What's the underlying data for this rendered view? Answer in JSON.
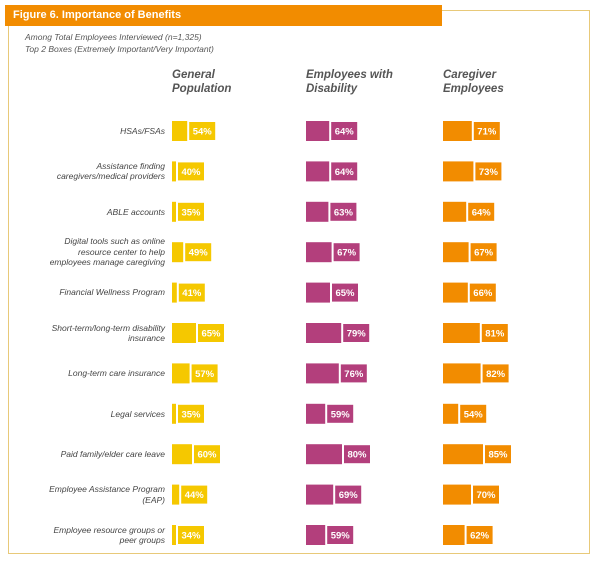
{
  "figure_title": "Figure 6. Importance of Benefits",
  "subtitle_line1": "Among Total Employees Interviewed (n=1,325)",
  "subtitle_line2": "Top 2 Boxes (Extremely Important/Very Important)",
  "colors": {
    "general": "#f5c800",
    "disability": "#b33f7c",
    "caregiver": "#f28c00",
    "title_bar": "#f28c00",
    "frame": "#e8c979"
  },
  "chart_data": {
    "type": "bar",
    "orientation": "horizontal",
    "title": "Figure 6. Importance of Benefits",
    "value_unit": "%",
    "categories": [
      "HSAs/FSAs",
      "Assistance finding caregivers/medical providers",
      "ABLE accounts",
      "Digital tools such as online resource center to help employees manage caregiving",
      "Financial Wellness Program",
      "Short-term/long-term disability insurance",
      "Long-term care insurance",
      "Legal services",
      "Paid family/elder care leave",
      "Employee Assistance Program (EAP)",
      "Employee resource groups or peer groups"
    ],
    "category_lines": [
      [
        "HSAs/FSAs"
      ],
      [
        "Assistance finding",
        "caregivers/medical providers"
      ],
      [
        "ABLE accounts"
      ],
      [
        "Digital tools such as online",
        "resource center to help",
        "employees manage caregiving"
      ],
      [
        "Financial Wellness Program"
      ],
      [
        "Short-term/long-term disability",
        "insurance"
      ],
      [
        "Long-term care insurance"
      ],
      [
        "Legal services"
      ],
      [
        "Paid family/elder care leave"
      ],
      [
        "Employee Assistance Program",
        "(EAP)"
      ],
      [
        "Employee resource groups or",
        "peer groups"
      ]
    ],
    "series": [
      {
        "name": "General Population",
        "header_lines": [
          "General",
          "Population"
        ],
        "values": [
          54,
          40,
          35,
          49,
          41,
          65,
          57,
          35,
          60,
          44,
          34
        ]
      },
      {
        "name": "Employees with Disability",
        "header_lines": [
          "Employees with",
          "Disability"
        ],
        "values": [
          64,
          64,
          63,
          67,
          65,
          79,
          76,
          59,
          80,
          69,
          59
        ]
      },
      {
        "name": "Caregiver Employees",
        "header_lines": [
          "Caregiver",
          "Employees"
        ],
        "values": [
          71,
          73,
          64,
          67,
          66,
          81,
          82,
          54,
          85,
          70,
          62
        ]
      }
    ]
  }
}
